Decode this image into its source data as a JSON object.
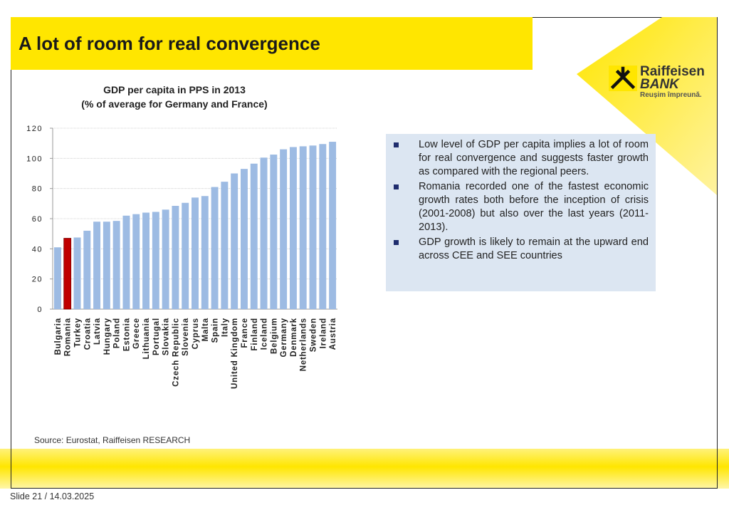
{
  "slide": {
    "title": "A lot of room for real convergence",
    "footer": "Slide 21 / 14.03.2025",
    "source": "Source: Eurostat, Raiffeisen RESEARCH"
  },
  "logo": {
    "name_line1": "Raiffeisen",
    "name_line2": "BANK",
    "tagline": "Reușim împreună."
  },
  "colors": {
    "brand_yellow": "#ffe600",
    "bar": "#9dbbe3",
    "highlight_bar": "#c00000",
    "note_bg": "#dce6f2",
    "bullet": "#1f2d6e"
  },
  "notes": [
    "Low level of GDP per capita implies a lot of room for real convergence and suggests faster growth as compared with the regional peers.",
    "Romania recorded one of the fastest economic growth rates both before the inception of crisis (2001-2008) but also over the last years (2011-2013).",
    "GDP growth is likely to remain at the upward end across CEE and SEE countries"
  ],
  "chart_data": {
    "type": "bar",
    "title_line1": "GDP per capita in PPS in 2013",
    "title_line2": "(% of average for Germany and France)",
    "xlabel": "",
    "ylabel": "",
    "ylim": [
      0,
      120
    ],
    "yticks": [
      0,
      20,
      40,
      60,
      80,
      100,
      120
    ],
    "grid": true,
    "highlight": "Romania",
    "categories": [
      "Bulgaria",
      "Romania",
      "Turkey",
      "Croatia",
      "Latvia",
      "Hungary",
      "Poland",
      "Estonia",
      "Greece",
      "Lithuania",
      "Portugal",
      "Slovakia",
      "Czech Republic",
      "Slovenia",
      "Cyprus",
      "Malta",
      "Spain",
      "Italy",
      "United Kingdom",
      "France",
      "Finland",
      "Iceland",
      "Belgium",
      "Germany",
      "Denmark",
      "Netherlands",
      "Sweden",
      "Ireland",
      "Austria"
    ],
    "values": [
      41,
      47,
      47.5,
      52,
      58,
      58,
      58.5,
      62,
      63,
      64,
      64.5,
      66,
      68.5,
      70.5,
      74,
      75,
      81,
      84.5,
      90,
      93,
      96.5,
      100.5,
      102.5,
      106,
      107.5,
      108,
      108.5,
      109.5,
      111
    ]
  }
}
